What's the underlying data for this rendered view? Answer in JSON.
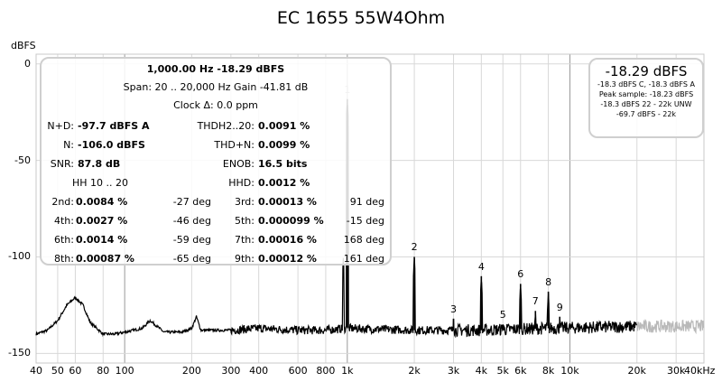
{
  "title": "EC 1655 55W4Ohm",
  "chart_data": {
    "type": "line",
    "title": "EC 1655 55W4Ohm",
    "ylabel": "dBFS",
    "x_scale": "log",
    "xlim": [
      40,
      40000
    ],
    "ylim": [
      -155,
      5
    ],
    "grid": true,
    "y_ticks": [
      {
        "v": 0,
        "t": "0"
      },
      {
        "v": -50,
        "t": "-50"
      },
      {
        "v": -100,
        "t": "-100"
      },
      {
        "v": -150,
        "t": "-150"
      }
    ],
    "x_ticks": [
      {
        "v": 40,
        "t": "40"
      },
      {
        "v": 50,
        "t": "50"
      },
      {
        "v": 60,
        "t": "60"
      },
      {
        "v": 80,
        "t": "80"
      },
      {
        "v": 100,
        "t": "100"
      },
      {
        "v": 200,
        "t": "200"
      },
      {
        "v": 300,
        "t": "300"
      },
      {
        "v": 400,
        "t": "400"
      },
      {
        "v": 600,
        "t": "600"
      },
      {
        "v": 800,
        "t": "800"
      },
      {
        "v": 1000,
        "t": "1k"
      },
      {
        "v": 2000,
        "t": "2k"
      },
      {
        "v": 3000,
        "t": "3k"
      },
      {
        "v": 4000,
        "t": "4k"
      },
      {
        "v": 5000,
        "t": "5k"
      },
      {
        "v": 6000,
        "t": "6k"
      },
      {
        "v": 8000,
        "t": "8k"
      },
      {
        "v": 10000,
        "t": "10k"
      },
      {
        "v": 20000,
        "t": "20k"
      },
      {
        "v": 30000,
        "t": "30k"
      },
      {
        "v": 40000,
        "t": "40kHz"
      }
    ],
    "noise_floor": [
      [
        40,
        -140
      ],
      [
        45,
        -138
      ],
      [
        50,
        -133
      ],
      [
        55,
        -125
      ],
      [
        60,
        -121
      ],
      [
        65,
        -125
      ],
      [
        70,
        -134
      ],
      [
        80,
        -140
      ],
      [
        90,
        -140
      ],
      [
        100,
        -139
      ],
      [
        120,
        -137
      ],
      [
        130,
        -133
      ],
      [
        140,
        -136
      ],
      [
        150,
        -139
      ],
      [
        180,
        -139
      ],
      [
        200,
        -137
      ],
      [
        210,
        -131
      ],
      [
        220,
        -138
      ],
      [
        300,
        -138
      ],
      [
        400,
        -137
      ],
      [
        600,
        -138
      ],
      [
        800,
        -138
      ],
      [
        1000,
        -137
      ],
      [
        2000,
        -138
      ],
      [
        4000,
        -138
      ],
      [
        8000,
        -137
      ],
      [
        20000,
        -136
      ],
      [
        40000,
        -136
      ]
    ],
    "harmonics": [
      {
        "label": "1",
        "x": 1000,
        "y": -18.29
      },
      {
        "label": "2",
        "x": 2000,
        "y": -100
      },
      {
        "label": "3",
        "x": 3000,
        "y": -132
      },
      {
        "label": "4",
        "x": 4000,
        "y": -110
      },
      {
        "label": "5",
        "x": 5000,
        "y": -135
      },
      {
        "label": "6",
        "x": 6000,
        "y": -114
      },
      {
        "label": "7",
        "x": 7000,
        "y": -128
      },
      {
        "label": "8",
        "x": 8000,
        "y": -118
      },
      {
        "label": "9",
        "x": 9000,
        "y": -131
      }
    ],
    "mains_spur": {
      "x": 960,
      "y": -100
    },
    "series_color": "#000000",
    "out_of_band_color": "#b9b9b9"
  },
  "info": {
    "line1": "1,000.00 Hz  -18.29 dBFS",
    "line2": "Span: 20 .. 20,000 Hz   Gain -41.81 dB",
    "line3": "Clock Δ: 0.0 ppm",
    "rows": [
      {
        "a_label": "N+D:",
        "a_value": "-97.7 dBFS A",
        "b_label": "THDH2..20:",
        "b_value": "0.0091 %"
      },
      {
        "a_label": "N:",
        "a_value": "-106.0 dBFS",
        "b_label": "THD+N:",
        "b_value": "0.0099 %"
      },
      {
        "a_label": "SNR:",
        "a_value": "87.8 dB",
        "b_label": "ENOB:",
        "b_value": "16.5 bits"
      },
      {
        "a_label": "HH 10 .. 20",
        "a_value": "",
        "b_label": "HHD:",
        "b_value": "0.0012 %"
      }
    ],
    "harmonics": [
      {
        "l1": "2nd:",
        "v1": "0.0084 %",
        "d1": "-27 deg",
        "l2": "3rd:",
        "v2": "0.00013 %",
        "d2": "91 deg"
      },
      {
        "l1": "4th:",
        "v1": "0.0027 %",
        "d1": "-46 deg",
        "l2": "5th:",
        "v2": "0.000099 %",
        "d2": "-15 deg"
      },
      {
        "l1": "6th:",
        "v1": "0.0014 %",
        "d1": "-59 deg",
        "l2": "7th:",
        "v2": "0.00016 %",
        "d2": "168 deg"
      },
      {
        "l1": "8th:",
        "v1": "0.00087 %",
        "d1": "-65 deg",
        "l2": "9th:",
        "v2": "0.00012 %",
        "d2": "161 deg"
      }
    ]
  },
  "peak": {
    "value": "-18.29 dBFS",
    "lines": [
      "-18.3 dBFS C, -18.3 dBFS A",
      "Peak sample: -18.23 dBFS",
      "-18.3 dBFS 22 - 22k UNW",
      "-69.7 dBFS - 22k"
    ]
  }
}
